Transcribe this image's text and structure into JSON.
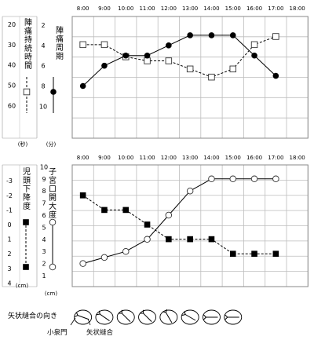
{
  "chart_data": [
    {
      "type": "line",
      "time_labels": [
        "8:00",
        "9:00",
        "10:00",
        "11:00",
        "12:00",
        "13:00",
        "14:00",
        "15:00",
        "16:00",
        "17:00",
        "18:00"
      ],
      "left_axis": {
        "label": "陣痛持続時間",
        "unit": "(秒)",
        "ticks": [
          "20",
          "30",
          "40",
          "50",
          "60"
        ],
        "range": [
          20,
          60
        ]
      },
      "right_axis": {
        "label": "陣痛周期",
        "unit": "(分)",
        "ticks": [
          "2",
          "4",
          "6",
          "8",
          "10"
        ],
        "range": [
          2,
          10
        ]
      },
      "series": [
        {
          "key": "period",
          "marker": "filled-circle",
          "line": "solid",
          "axis": "right",
          "x": [
            0,
            1,
            2,
            3,
            4,
            5,
            6,
            7,
            8,
            9
          ],
          "values": [
            8,
            6,
            5,
            5,
            4,
            3,
            3,
            3,
            5,
            7
          ]
        },
        {
          "key": "duration",
          "marker": "open-square",
          "line": "dashed",
          "axis": "left",
          "x": [
            0,
            1,
            2,
            3,
            4,
            5,
            6,
            7,
            8,
            9
          ],
          "values": [
            30,
            30,
            36,
            38,
            38,
            42,
            46,
            42,
            30,
            26
          ]
        }
      ],
      "grid": true
    },
    {
      "type": "line",
      "time_labels": [
        "8:00",
        "9:00",
        "10:00",
        "11:00",
        "12:00",
        "13:00",
        "14:00",
        "15:00",
        "16:00",
        "17:00",
        "18:00"
      ],
      "left_axis": {
        "label": "児頭下降度",
        "unit": "(cm)",
        "ticks": [
          "-3",
          "-2",
          "-1",
          "0",
          "1",
          "2",
          "3",
          "4"
        ],
        "range": [
          -3,
          4
        ]
      },
      "right_axis": {
        "label": "子宮口開大度",
        "unit": "(cm)",
        "ticks": [
          "1",
          "2",
          "3",
          "4",
          "5",
          "6",
          "7",
          "8",
          "9",
          "10"
        ],
        "range": [
          1,
          10
        ]
      },
      "series": [
        {
          "key": "descent",
          "marker": "filled-square",
          "line": "dashed",
          "axis": "left",
          "x": [
            0,
            1,
            2,
            3,
            4,
            5,
            6,
            7,
            8,
            9
          ],
          "values": [
            -2,
            -1,
            -1,
            0,
            1,
            1,
            1,
            2,
            2,
            2
          ]
        },
        {
          "key": "dilation",
          "marker": "open-circle",
          "line": "solid",
          "axis": "right",
          "x": [
            0,
            1,
            2,
            3,
            4,
            5,
            6,
            7,
            8,
            9
          ],
          "values": [
            2,
            2.5,
            3,
            4,
            6,
            8,
            9,
            9,
            9,
            9
          ]
        }
      ],
      "grid": true
    }
  ],
  "suture": {
    "label": "矢状縫合の向き",
    "callouts": [
      "小泉門",
      "矢状縫合"
    ],
    "glyph_angles": [
      200,
      215,
      225,
      225,
      240,
      210,
      180,
      180
    ]
  }
}
